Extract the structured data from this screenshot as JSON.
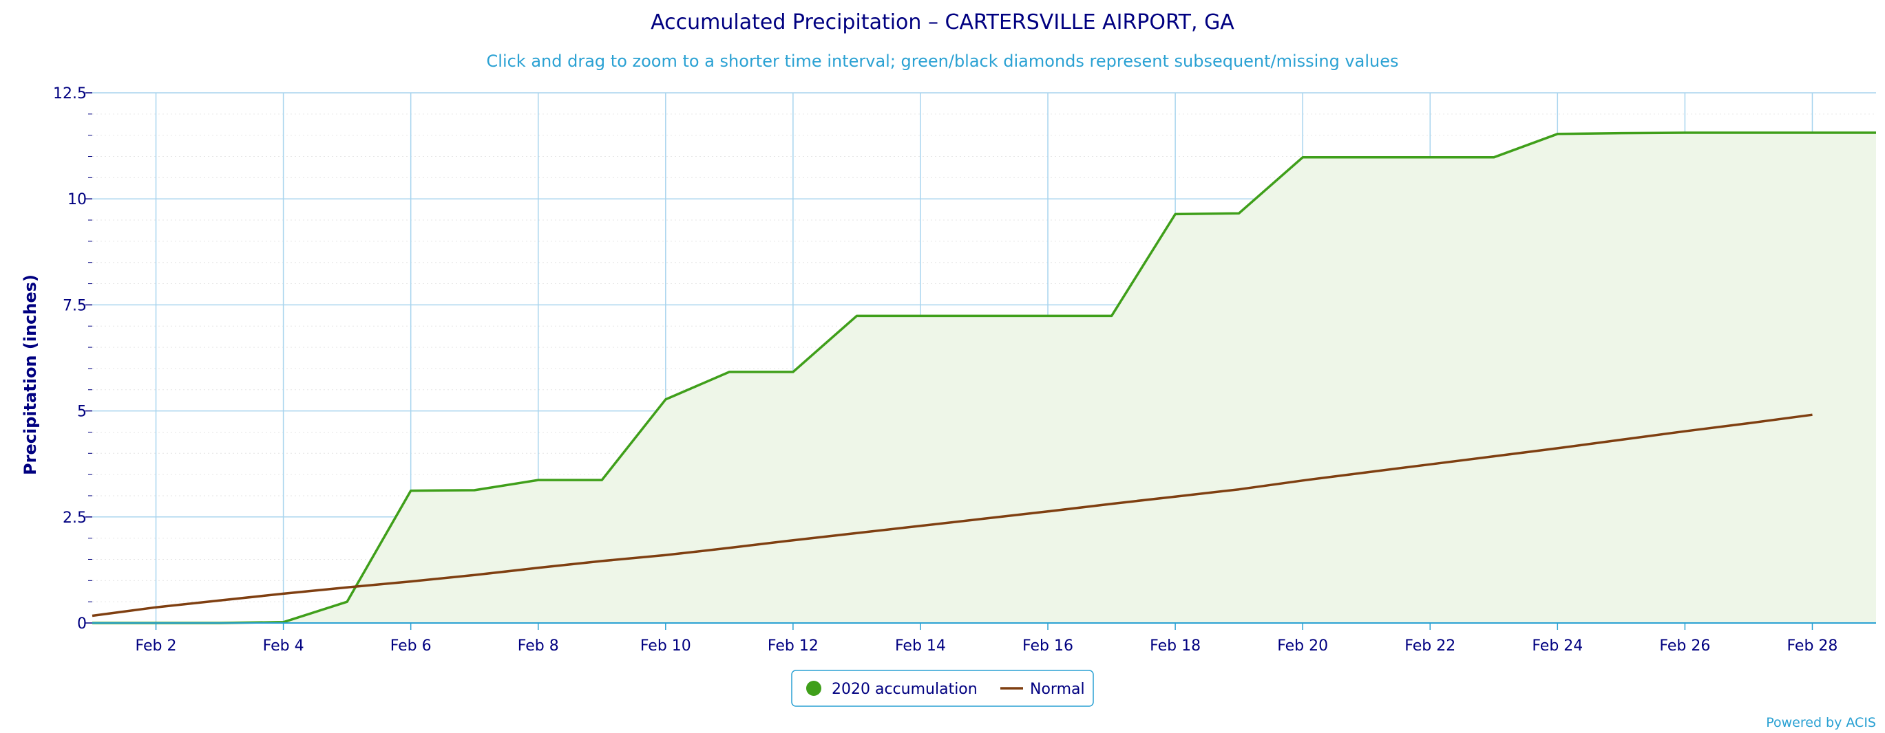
{
  "chart_data": {
    "type": "area",
    "title": "Accumulated Precipitation – CARTERSVILLE AIRPORT, GA",
    "subtitle": "Click and drag to zoom to a shorter time interval; green/black diamonds represent subsequent/missing values",
    "ylabel": "Precipitation (inches)",
    "xlabel": "",
    "ylim": [
      0,
      12.5
    ],
    "xlim": [
      1,
      29
    ],
    "yticks": [
      0,
      2.5,
      5,
      7.5,
      10,
      12.5
    ],
    "ytick_labels": [
      "0",
      "2.5",
      "5",
      "7.5",
      "10",
      "12.5"
    ],
    "xticks": [
      2,
      4,
      6,
      8,
      10,
      12,
      14,
      16,
      18,
      20,
      22,
      24,
      26,
      28
    ],
    "xtick_labels": [
      "Feb 2",
      "Feb 4",
      "Feb 6",
      "Feb 8",
      "Feb 10",
      "Feb 12",
      "Feb 14",
      "Feb 16",
      "Feb 18",
      "Feb 20",
      "Feb 22",
      "Feb 24",
      "Feb 26",
      "Feb 28"
    ],
    "grid": true,
    "legend_position": "bottom-center",
    "series": [
      {
        "name": "2020 accumulation",
        "type": "area",
        "color": "#3f9f1a",
        "fill": "#eef6e8",
        "x": [
          1,
          2,
          3,
          4,
          5,
          6,
          7,
          8,
          9,
          10,
          11,
          12,
          13,
          14,
          15,
          16,
          17,
          18,
          19,
          20,
          21,
          22,
          23,
          24,
          25,
          26,
          27,
          28,
          29
        ],
        "values": [
          0.0,
          0.0,
          0.0,
          0.02,
          0.5,
          3.12,
          3.13,
          3.37,
          3.37,
          5.27,
          5.92,
          5.92,
          7.24,
          7.24,
          7.24,
          7.24,
          7.24,
          9.64,
          9.66,
          10.98,
          10.98,
          10.98,
          10.98,
          11.53,
          11.55,
          11.56,
          11.56,
          11.56,
          11.56
        ]
      },
      {
        "name": "Normal",
        "type": "line",
        "color": "#7f3f11",
        "x": [
          1,
          2,
          3,
          4,
          5,
          6,
          7,
          8,
          9,
          10,
          11,
          12,
          13,
          14,
          15,
          16,
          17,
          18,
          19,
          20,
          21,
          22,
          23,
          24,
          25,
          26,
          27,
          28
        ],
        "values": [
          0.17,
          0.37,
          0.53,
          0.69,
          0.84,
          0.98,
          1.13,
          1.3,
          1.46,
          1.6,
          1.77,
          1.95,
          2.12,
          2.29,
          2.46,
          2.63,
          2.81,
          2.98,
          3.15,
          3.36,
          3.55,
          3.74,
          3.93,
          4.12,
          4.32,
          4.52,
          4.71,
          4.91
        ]
      }
    ]
  },
  "credits": "Powered by ACIS"
}
